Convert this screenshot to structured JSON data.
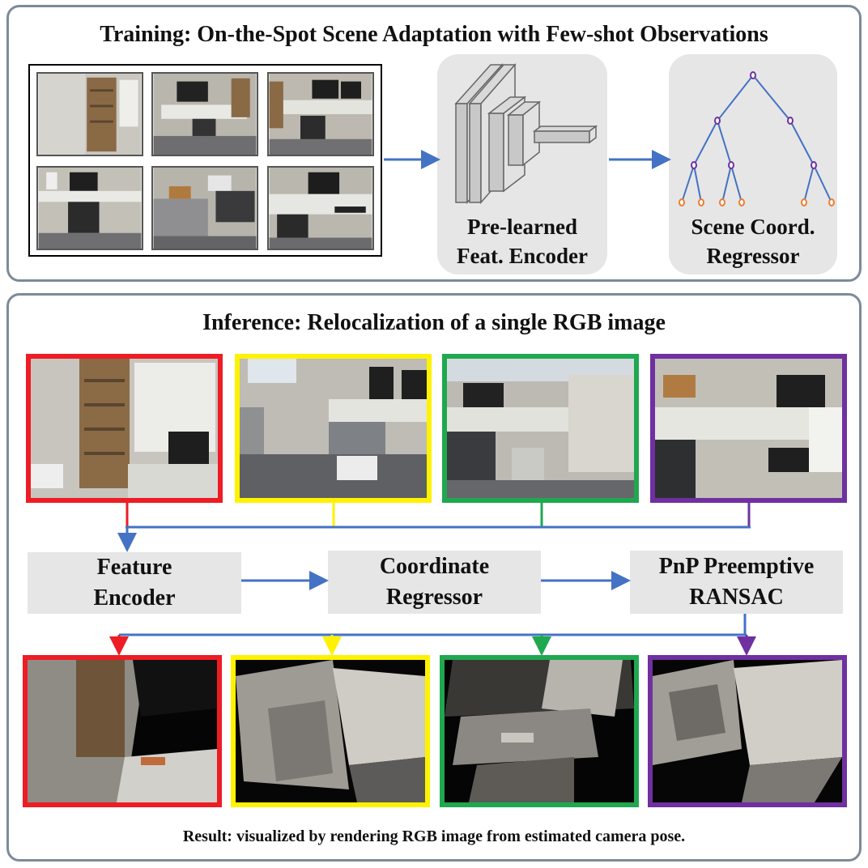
{
  "training": {
    "title": "Training: On-the-Spot Scene Adaptation with Few-shot Observations",
    "encoder_label": "Pre-learned\nFeat. Encoder",
    "regressor_label": "Scene Coord.\nRegressor"
  },
  "inference": {
    "title": "Inference: Relocalization of a single RGB image",
    "steps": [
      "Feature\nEncoder",
      "Coordinate\nRegressor",
      "PnP Preemptive\nRANSAC"
    ]
  },
  "result_caption": "Result: visualized by rendering RGB image from estimated camera pose.",
  "colors": {
    "red": "#ee1c24",
    "yellow": "#fff200",
    "green": "#1fa84f",
    "purple": "#7030a0",
    "arrow": "#4472c4",
    "panel_border": "#7d8a99",
    "tree_node": "#7030a0",
    "leaf_node": "#ed7d31"
  },
  "frame_colors": [
    "red",
    "yellow",
    "green",
    "purple"
  ]
}
